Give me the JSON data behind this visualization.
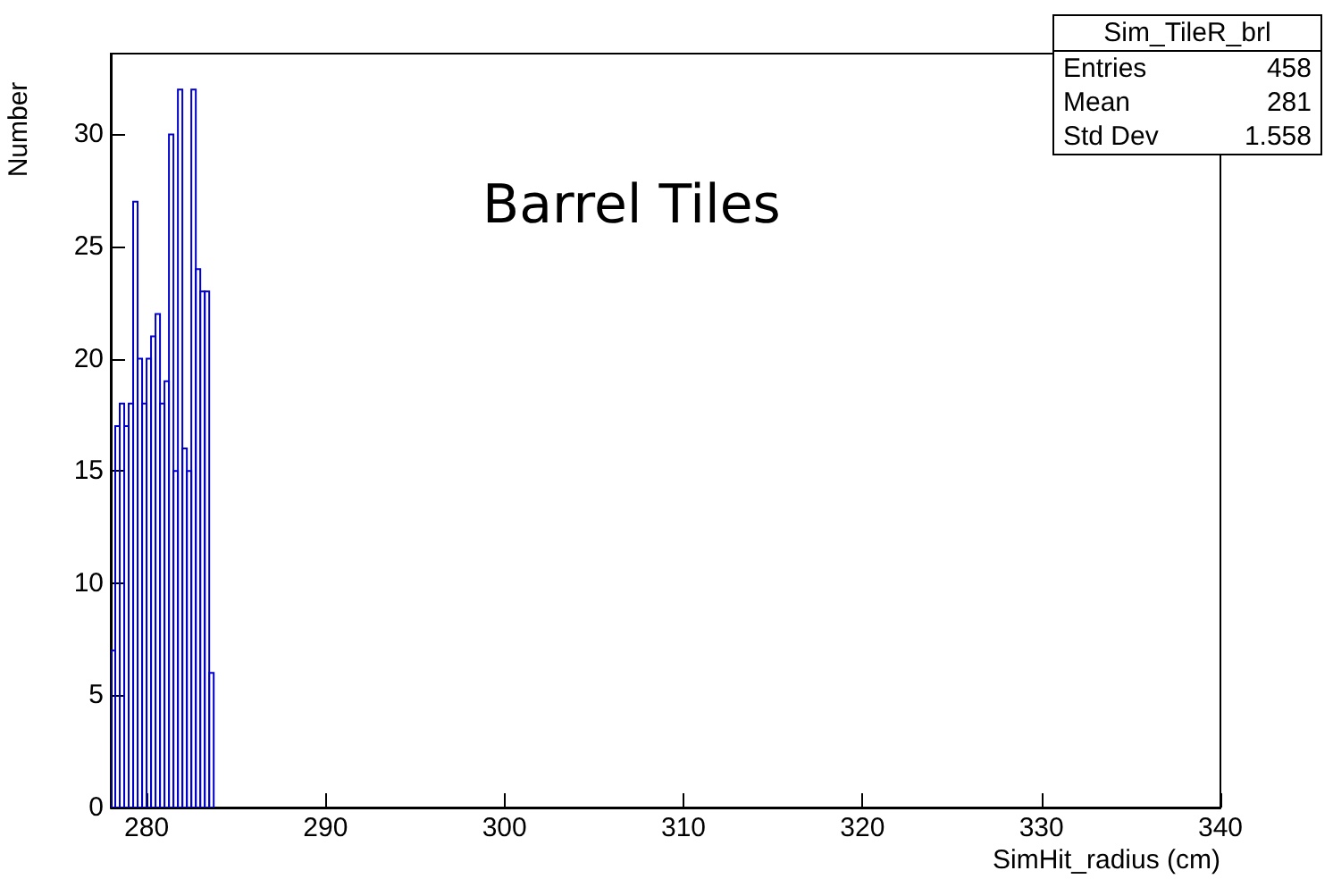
{
  "chart_data": {
    "type": "histogram",
    "title": "Barrel Tiles",
    "xlabel": "SimHit_radius (cm)",
    "ylabel": "Number",
    "bins": [
      278,
      278.25,
      278.5,
      278.75,
      279,
      279.25,
      279.5,
      279.75,
      280,
      280.25,
      280.5,
      280.75,
      281,
      281.25,
      281.5,
      281.75,
      282,
      282.25,
      282.5,
      282.75,
      283,
      283.25,
      283.5,
      283.75
    ],
    "values": [
      7,
      17,
      18,
      17,
      18,
      27,
      20,
      18,
      20,
      21,
      22,
      18,
      19,
      30,
      15,
      32,
      16,
      15,
      32,
      24,
      23,
      23,
      6
    ],
    "color": "#0000cc",
    "xlim": [
      278,
      340
    ],
    "xticks": [
      280,
      290,
      300,
      310,
      320,
      330,
      340
    ],
    "ylim": [
      0,
      33.6
    ],
    "yticks": [
      0,
      5,
      10,
      15,
      20,
      25,
      30
    ],
    "annotations": [
      "Sim_TileR_brl",
      "Entries",
      "458",
      "Mean",
      "281",
      "Std Dev",
      "1.558"
    ],
    "grid": false
  }
}
